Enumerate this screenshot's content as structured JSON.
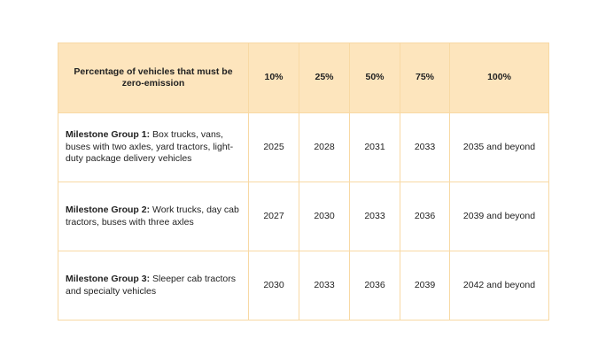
{
  "table": {
    "header": [
      "Percentage of vehicles that must be zero-emission",
      "10%",
      "25%",
      "50%",
      "75%",
      "100%"
    ],
    "rows": [
      {
        "label": "Milestone Group 1:",
        "description": "Box trucks, vans, buses with two axles, yard tractors, light-duty package delivery vehicles",
        "values": [
          "2025",
          "2028",
          "2031",
          "2033",
          "2035 and beyond"
        ]
      },
      {
        "label": "Milestone Group 2:",
        "description": "Work trucks, day cab tractors, buses with three axles",
        "values": [
          "2027",
          "2030",
          "2033",
          "2036",
          "2039 and beyond"
        ]
      },
      {
        "label": "Milestone Group 3:",
        "description": "Sleeper cab tractors and specialty vehicles",
        "values": [
          "2030",
          "2033",
          "2036",
          "2039",
          "2042 and beyond"
        ]
      }
    ]
  }
}
